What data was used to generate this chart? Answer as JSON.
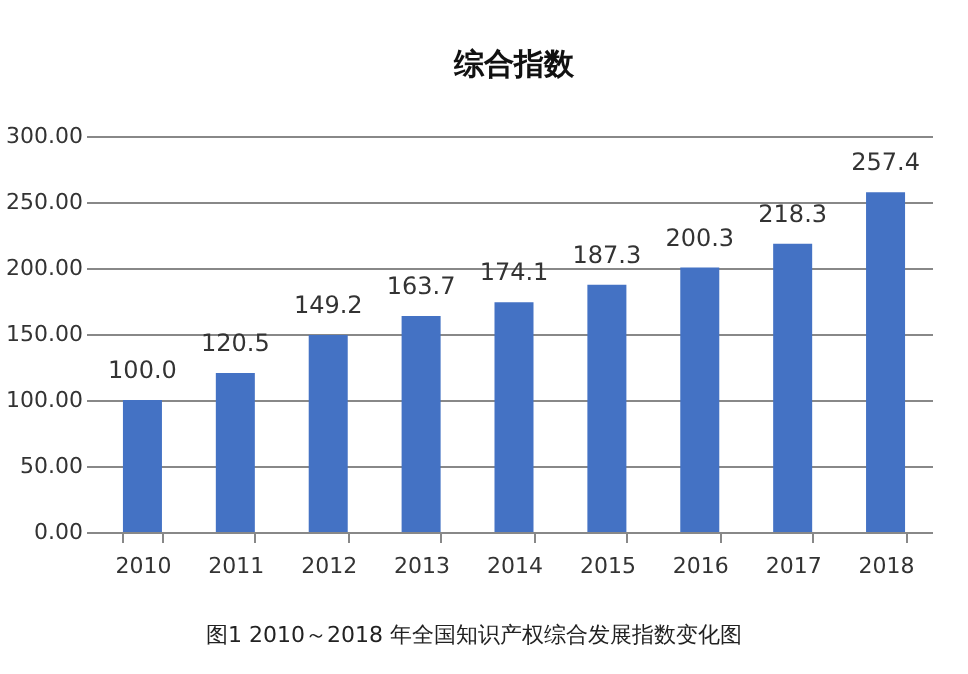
{
  "chart_data": {
    "type": "bar",
    "title": "综合指数",
    "categories": [
      "2010",
      "2011",
      "2012",
      "2013",
      "2014",
      "2015",
      "2016",
      "2017",
      "2018"
    ],
    "series": [
      {
        "color": "#4472c4",
        "values": [
          100.0,
          120.5,
          149.2,
          163.7,
          174.1,
          187.3,
          200.3,
          218.3,
          257.4
        ],
        "value_labels": [
          "100.0",
          "120.5",
          "149.2",
          "163.7",
          "174.1",
          "187.3",
          "200.3",
          "218.3",
          "257.4"
        ]
      }
    ],
    "ylim": [
      0,
      300
    ],
    "yticks": [
      {
        "value": 0,
        "label": "0.00"
      },
      {
        "value": 50,
        "label": "50.00"
      },
      {
        "value": 100,
        "label": "100.00"
      },
      {
        "value": 150,
        "label": "150.00"
      },
      {
        "value": 200,
        "label": "200.00"
      },
      {
        "value": 250,
        "label": "250.00"
      },
      {
        "value": 300,
        "label": "300.00"
      }
    ],
    "grid": "y",
    "annotations": [
      "图1 2010～2018 年全国知识产权综合发展指数变化图"
    ]
  }
}
